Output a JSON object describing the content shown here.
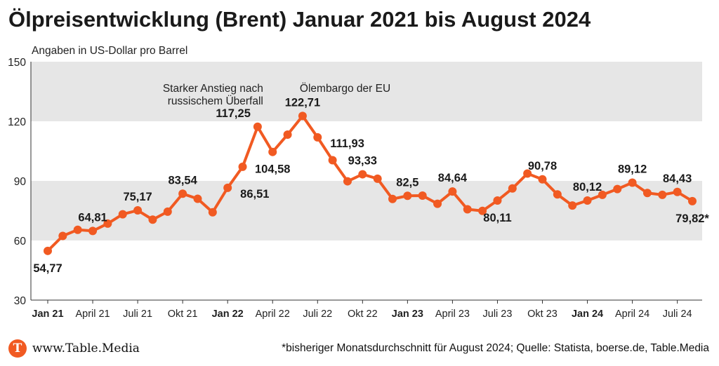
{
  "header": {
    "title": "Ölpreisentwicklung (Brent) Januar 2021 bis August 2024",
    "subtitle": "Angaben in US-Dollar pro Barrel"
  },
  "footer": {
    "logo_letter": "T",
    "site": "www.Table.Media",
    "source": "*bisheriger Monatsdurchschnitt für August 2024; Quelle: Statista, boerse.de, Table.Media"
  },
  "colors": {
    "line": "#f15a22",
    "band": "#e6e6e6",
    "text": "#1a1a1a"
  },
  "chart_data": {
    "type": "line",
    "title": "Ölpreisentwicklung (Brent) Januar 2021 bis August 2024",
    "ylabel": "Angaben in US-Dollar pro Barrel",
    "ylim": [
      30,
      150
    ],
    "yticks": [
      30,
      60,
      90,
      120,
      150
    ],
    "bands": [
      [
        60,
        90
      ],
      [
        120,
        150
      ]
    ],
    "x_tick_labels": [
      {
        "index": 0,
        "label": "Jan 21",
        "bold": true
      },
      {
        "index": 3,
        "label": "April 21",
        "bold": false
      },
      {
        "index": 6,
        "label": "Juli 21",
        "bold": false
      },
      {
        "index": 9,
        "label": "Okt 21",
        "bold": false
      },
      {
        "index": 12,
        "label": "Jan 22",
        "bold": true
      },
      {
        "index": 15,
        "label": "April 22",
        "bold": false
      },
      {
        "index": 18,
        "label": "Juli 22",
        "bold": false
      },
      {
        "index": 21,
        "label": "Okt 22",
        "bold": false
      },
      {
        "index": 24,
        "label": "Jan 23",
        "bold": true
      },
      {
        "index": 27,
        "label": "April 23",
        "bold": false
      },
      {
        "index": 30,
        "label": "Juli 23",
        "bold": false
      },
      {
        "index": 33,
        "label": "Okt 23",
        "bold": false
      },
      {
        "index": 36,
        "label": "Jan 24",
        "bold": true
      },
      {
        "index": 39,
        "label": "April 24",
        "bold": false
      },
      {
        "index": 42,
        "label": "Juli 24",
        "bold": false
      }
    ],
    "series": [
      {
        "values": [
          54.77,
          62.3,
          65.4,
          64.81,
          68.5,
          73.2,
          75.17,
          70.5,
          74.5,
          83.54,
          81.0,
          74.2,
          86.51,
          97.1,
          117.25,
          104.58,
          113.3,
          122.71,
          111.93,
          100.4,
          89.8,
          93.33,
          91.1,
          80.9,
          82.5,
          82.6,
          78.5,
          84.64,
          75.7,
          74.9,
          80.11,
          86.2,
          93.7,
          90.78,
          83.2,
          77.6,
          80.12,
          83.0,
          85.9,
          89.12,
          83.9,
          83.0,
          84.43,
          79.82
        ]
      }
    ],
    "data_labels": [
      {
        "index": 0,
        "text": "54,77",
        "pos": "below"
      },
      {
        "index": 3,
        "text": "64,81",
        "pos": "above"
      },
      {
        "index": 6,
        "text": "75,17",
        "pos": "above"
      },
      {
        "index": 9,
        "text": "83,54",
        "pos": "above"
      },
      {
        "index": 12,
        "text": "86,51",
        "pos": "right"
      },
      {
        "index": 14,
        "text": "117,25",
        "pos": "above-left"
      },
      {
        "index": 15,
        "text": "104,58",
        "pos": "below"
      },
      {
        "index": 17,
        "text": "122,71",
        "pos": "above"
      },
      {
        "index": 18,
        "text": "111,93",
        "pos": "right"
      },
      {
        "index": 21,
        "text": "93,33",
        "pos": "above"
      },
      {
        "index": 24,
        "text": "82,5",
        "pos": "above"
      },
      {
        "index": 27,
        "text": "84,64",
        "pos": "above"
      },
      {
        "index": 30,
        "text": "80,11",
        "pos": "below"
      },
      {
        "index": 33,
        "text": "90,78",
        "pos": "above"
      },
      {
        "index": 36,
        "text": "80,12",
        "pos": "above"
      },
      {
        "index": 39,
        "text": "89,12",
        "pos": "above"
      },
      {
        "index": 42,
        "text": "84,43",
        "pos": "above"
      },
      {
        "index": 43,
        "text": "79,82*",
        "pos": "below"
      }
    ],
    "annotations": [
      {
        "index": 14,
        "lines": [
          "Starker Anstieg nach",
          "russischem Überfall"
        ],
        "align": "end"
      },
      {
        "index": 17,
        "lines": [
          "Ölembargo der EU"
        ],
        "align": "start"
      }
    ]
  }
}
